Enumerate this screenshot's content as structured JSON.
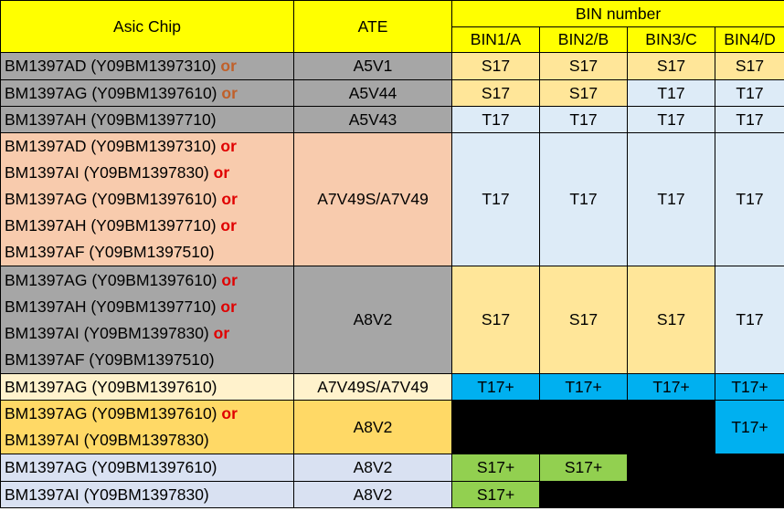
{
  "headers": {
    "asic_chip": "Asic Chip",
    "ate": "ATE",
    "bin_number": "BIN number",
    "bins": [
      "BIN1/A",
      "BIN2/B",
      "BIN3/C",
      "BIN4/D"
    ]
  },
  "connector": "or",
  "groups": [
    {
      "chips": [
        "BM1397AD (Y09BM1397310)",
        "BM1397AG (Y09BM1397610)",
        "BM1397AH (Y09BM1397710)"
      ],
      "rows": [
        {
          "ate": "A5V1",
          "bins": [
            "S17",
            "S17",
            "S17",
            "S17"
          ]
        },
        {
          "ate": "A5V44",
          "bins": [
            "S17",
            "S17",
            "T17",
            "T17"
          ]
        },
        {
          "ate": "A5V43",
          "bins": [
            "T17",
            "T17",
            "T17",
            "T17"
          ]
        }
      ]
    },
    {
      "chips": [
        "BM1397AD (Y09BM1397310)",
        "BM1397AI (Y09BM1397830)",
        "BM1397AG (Y09BM1397610)",
        "BM1397AH (Y09BM1397710)",
        "BM1397AF (Y09BM1397510)"
      ],
      "ate": "A7V49S/A7V49",
      "bins": [
        "T17",
        "T17",
        "T17",
        "T17"
      ]
    },
    {
      "chips": [
        "BM1397AG (Y09BM1397610)",
        "BM1397AH (Y09BM1397710)",
        "BM1397AI (Y09BM1397830)",
        "BM1397AF (Y09BM1397510)"
      ],
      "ate": "A8V2",
      "bins": [
        "S17",
        "S17",
        "S17",
        "T17"
      ]
    },
    {
      "chips": [
        "BM1397AG (Y09BM1397610)"
      ],
      "ate": "A7V49S/A7V49",
      "bins": [
        "T17+",
        "T17+",
        "T17+",
        "T17+"
      ]
    },
    {
      "chips": [
        "BM1397AG (Y09BM1397610)",
        "BM1397AI (Y09BM1397830)"
      ],
      "ate": "A8V2",
      "bins": [
        "",
        "",
        "",
        "T17+"
      ]
    },
    {
      "chips": [
        "BM1397AG (Y09BM1397610)"
      ],
      "ate": "A8V2",
      "bins": [
        "S17+",
        "S17+",
        "",
        ""
      ]
    },
    {
      "chips": [
        "BM1397AI (Y09BM1397830)"
      ],
      "ate": "A8V2",
      "bins": [
        "S17+",
        "",
        "",
        ""
      ]
    }
  ],
  "colors": {
    "header": "#ffff00",
    "gray": "#a6a6a6",
    "peach": "#f8cbad",
    "orange_light": "#ffe699",
    "blue_light": "#ddebf7",
    "cyan": "#00b0f0",
    "green": "#92d050",
    "black": "#000000",
    "or_brown": "#c0602a",
    "or_red": "#e00000"
  }
}
